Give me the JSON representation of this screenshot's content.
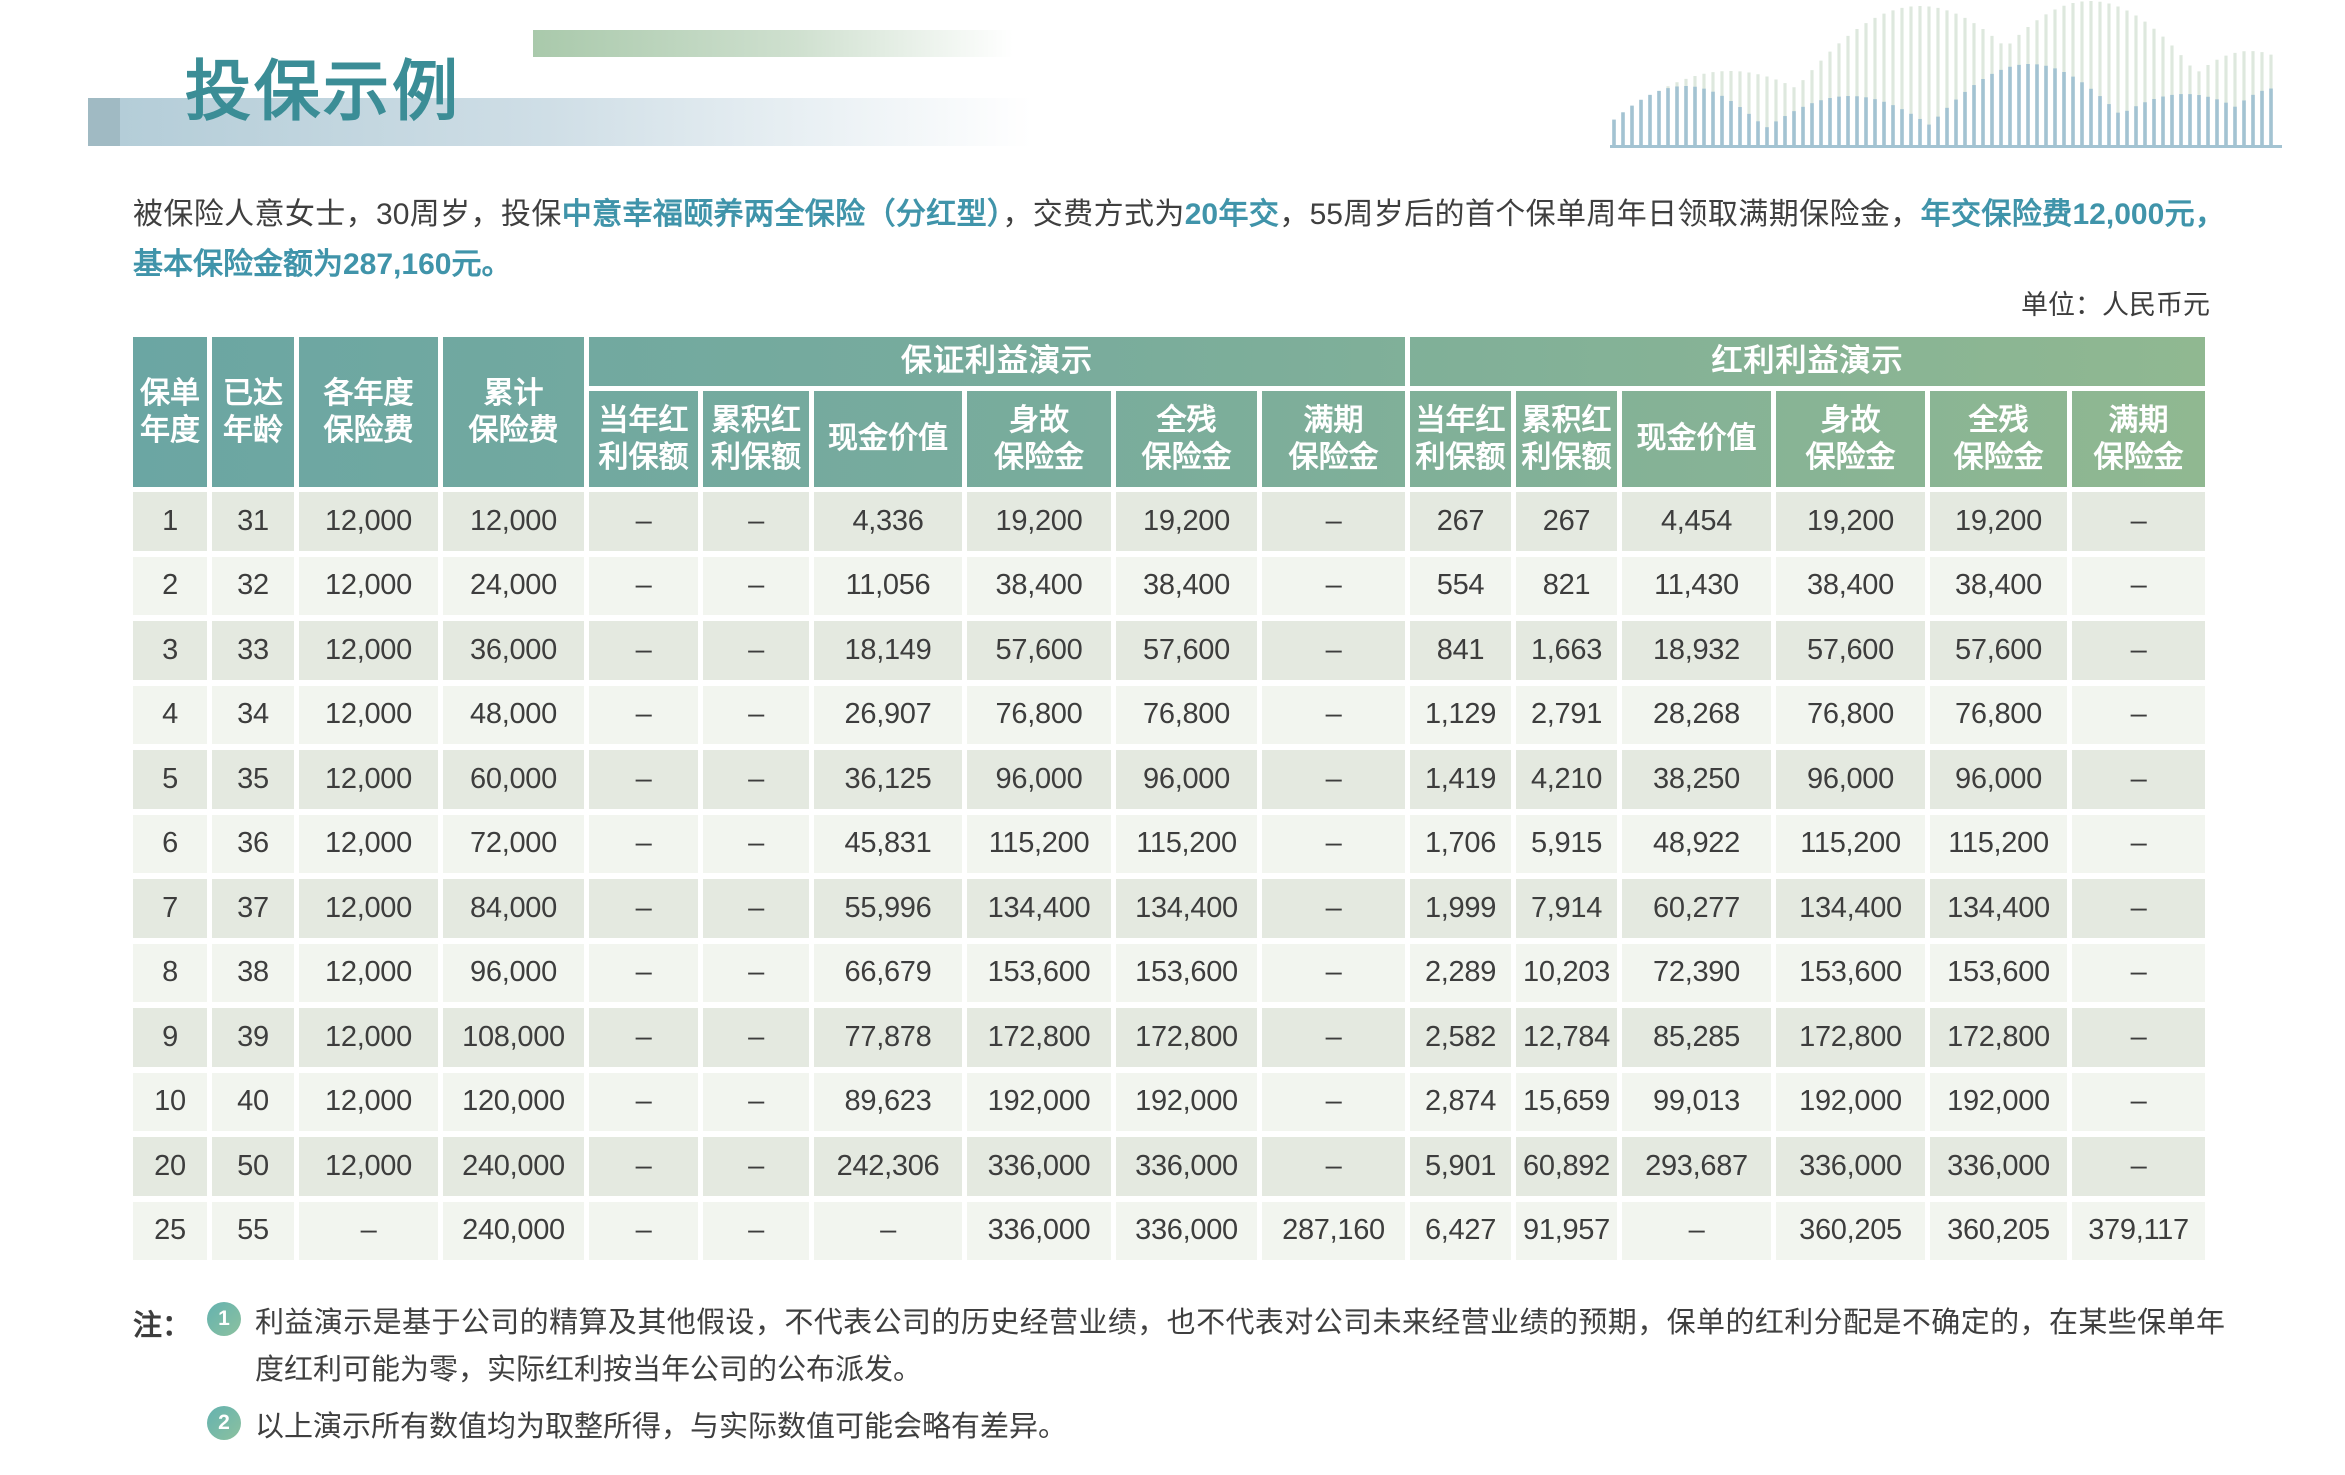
{
  "page": {
    "title": "投保示例",
    "unit_label": "单位：人民币元"
  },
  "intro": {
    "segments": [
      {
        "text": "被保险人意女士，30周岁，投保",
        "highlight": false
      },
      {
        "text": "中意幸福颐养两全保险（分红型）",
        "highlight": true
      },
      {
        "text": "，交费方式为",
        "highlight": false
      },
      {
        "text": "20年交",
        "highlight": true
      },
      {
        "text": "，55周岁后的首个保单周年日领取满期保险金，",
        "highlight": false
      },
      {
        "text": "年交保险费12,000元，基本保险金额为287,160元。",
        "highlight": true
      }
    ]
  },
  "table": {
    "base_headers": [
      [
        "保单",
        "年度"
      ],
      [
        "已达",
        "年龄"
      ],
      [
        "各年度",
        "保险费"
      ],
      [
        "累计",
        "保险费"
      ]
    ],
    "groups": [
      {
        "title": "保证利益演示",
        "columns": [
          [
            "当年红",
            "利保额"
          ],
          [
            "累积红",
            "利保额"
          ],
          [
            "现金价值"
          ],
          [
            "身故",
            "保险金"
          ],
          [
            "全残",
            "保险金"
          ],
          [
            "满期",
            "保险金"
          ]
        ]
      },
      {
        "title": "红利利益演示",
        "columns": [
          [
            "当年红",
            "利保额"
          ],
          [
            "累积红",
            "利保额"
          ],
          [
            "现金价值"
          ],
          [
            "身故",
            "保险金"
          ],
          [
            "全残",
            "保险金"
          ],
          [
            "满期",
            "保险金"
          ]
        ]
      }
    ],
    "rows": [
      [
        "1",
        "31",
        "12,000",
        "12,000",
        "–",
        "–",
        "4,336",
        "19,200",
        "19,200",
        "–",
        "267",
        "267",
        "4,454",
        "19,200",
        "19,200",
        "–"
      ],
      [
        "2",
        "32",
        "12,000",
        "24,000",
        "–",
        "–",
        "11,056",
        "38,400",
        "38,400",
        "–",
        "554",
        "821",
        "11,430",
        "38,400",
        "38,400",
        "–"
      ],
      [
        "3",
        "33",
        "12,000",
        "36,000",
        "–",
        "–",
        "18,149",
        "57,600",
        "57,600",
        "–",
        "841",
        "1,663",
        "18,932",
        "57,600",
        "57,600",
        "–"
      ],
      [
        "4",
        "34",
        "12,000",
        "48,000",
        "–",
        "–",
        "26,907",
        "76,800",
        "76,800",
        "–",
        "1,129",
        "2,791",
        "28,268",
        "76,800",
        "76,800",
        "–"
      ],
      [
        "5",
        "35",
        "12,000",
        "60,000",
        "–",
        "–",
        "36,125",
        "96,000",
        "96,000",
        "–",
        "1,419",
        "4,210",
        "38,250",
        "96,000",
        "96,000",
        "–"
      ],
      [
        "6",
        "36",
        "12,000",
        "72,000",
        "–",
        "–",
        "45,831",
        "115,200",
        "115,200",
        "–",
        "1,706",
        "5,915",
        "48,922",
        "115,200",
        "115,200",
        "–"
      ],
      [
        "7",
        "37",
        "12,000",
        "84,000",
        "–",
        "–",
        "55,996",
        "134,400",
        "134,400",
        "–",
        "1,999",
        "7,914",
        "60,277",
        "134,400",
        "134,400",
        "–"
      ],
      [
        "8",
        "38",
        "12,000",
        "96,000",
        "–",
        "–",
        "66,679",
        "153,600",
        "153,600",
        "–",
        "2,289",
        "10,203",
        "72,390",
        "153,600",
        "153,600",
        "–"
      ],
      [
        "9",
        "39",
        "12,000",
        "108,000",
        "–",
        "–",
        "77,878",
        "172,800",
        "172,800",
        "–",
        "2,582",
        "12,784",
        "85,285",
        "172,800",
        "172,800",
        "–"
      ],
      [
        "10",
        "40",
        "12,000",
        "120,000",
        "–",
        "–",
        "89,623",
        "192,000",
        "192,000",
        "–",
        "2,874",
        "15,659",
        "99,013",
        "192,000",
        "192,000",
        "–"
      ],
      [
        "20",
        "50",
        "12,000",
        "240,000",
        "–",
        "–",
        "242,306",
        "336,000",
        "336,000",
        "–",
        "5,901",
        "60,892",
        "293,687",
        "336,000",
        "336,000",
        "–"
      ],
      [
        "25",
        "55",
        "–",
        "240,000",
        "–",
        "–",
        "–",
        "336,000",
        "336,000",
        "287,160",
        "6,427",
        "91,957",
        "–",
        "360,205",
        "360,205",
        "379,117"
      ]
    ]
  },
  "notes": {
    "label": "注：",
    "items": [
      {
        "num": "1",
        "text": "利益演示是基于公司的精算及其他假设，不代表公司的历史经营业绩，也不代表对公司未来经营业绩的预期，保单的红利分配是不确定的，在某些保单年度红利可能为零，实际红利按当年公司的公布派发。"
      },
      {
        "num": "2",
        "text": "以上演示所有数值均为取整所得，与实际数值可能会略有差异。"
      }
    ]
  },
  "colors": {
    "title_teal": "#3b8d96",
    "highlight_teal": "#4094aa",
    "header_gradient_left": "#6ba6a3",
    "header_gradient_right": "#90b891",
    "row_odd": "#e4e9e0",
    "row_even": "#f2f5ef",
    "wave_front": "#a3c3d2",
    "wave_back": "#dee8de"
  }
}
